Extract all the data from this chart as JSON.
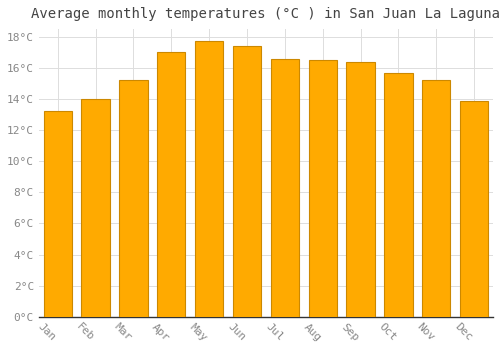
{
  "title": "Average monthly temperatures (°C ) in San Juan La Laguna",
  "months": [
    "Jan",
    "Feb",
    "Mar",
    "Apr",
    "May",
    "Jun",
    "Jul",
    "Aug",
    "Sep",
    "Oct",
    "Nov",
    "Dec"
  ],
  "temperatures": [
    13.2,
    14.0,
    15.2,
    17.0,
    17.7,
    17.4,
    16.6,
    16.5,
    16.4,
    15.7,
    15.2,
    13.9
  ],
  "bar_color": "#FFAA00",
  "bar_edge_color": "#CC8800",
  "background_color": "#FFFFFF",
  "grid_color": "#DDDDDD",
  "ylim": [
    0,
    18.5
  ],
  "yticks": [
    0,
    2,
    4,
    6,
    8,
    10,
    12,
    14,
    16,
    18
  ],
  "title_fontsize": 10,
  "tick_fontsize": 8,
  "bar_width": 0.75,
  "xlabel_rotation": -45,
  "tick_color": "#888888",
  "spine_color": "#333333"
}
